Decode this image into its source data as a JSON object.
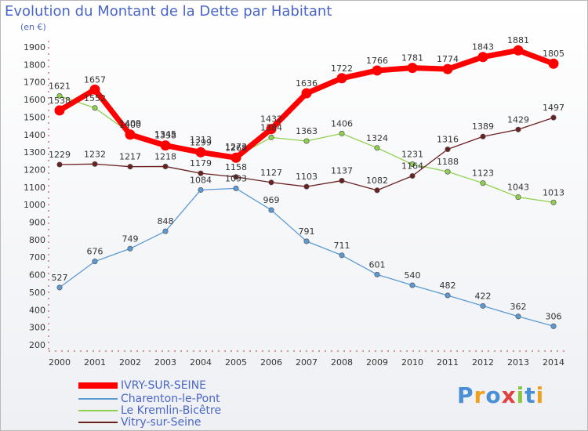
{
  "header": {
    "title": "Evolution du Montant de la Dette par Habitant",
    "subtitle": "(en €)"
  },
  "logo_text": "Proxiti",
  "chart_data": {
    "type": "line",
    "title": "Evolution du Montant de la Dette par Habitant",
    "ylabel": "(en €)",
    "xlabel": "",
    "x": [
      2000,
      2001,
      2002,
      2003,
      2004,
      2005,
      2006,
      2007,
      2008,
      2009,
      2010,
      2011,
      2012,
      2013,
      2014
    ],
    "ylim": [
      200,
      1900
    ],
    "yticks": [
      200,
      300,
      400,
      500,
      600,
      700,
      800,
      900,
      1000,
      1100,
      1200,
      1300,
      1400,
      1500,
      1600,
      1700,
      1800,
      1900
    ],
    "grid": false,
    "legend_position": "bottom-left",
    "series": [
      {
        "name": "IVRY-SUR-SEINE",
        "color": "#ff0000",
        "values": [
          1538,
          1657,
          1400,
          1338,
          1299,
          1268,
          1432,
          1636,
          1722,
          1766,
          1781,
          1774,
          1843,
          1881,
          1805
        ]
      },
      {
        "name": "Charenton-le-Pont",
        "color": "#5b9bd5",
        "values": [
          527,
          676,
          749,
          848,
          1084,
          1093,
          969,
          791,
          711,
          601,
          540,
          482,
          422,
          362,
          306
        ]
      },
      {
        "name": "Le Kremlin-Bicêtre",
        "color": "#8fd14f",
        "values": [
          1621,
          1552,
          1409,
          1345,
          1313,
          1273,
          1384,
          1363,
          1406,
          1324,
          1231,
          1188,
          1123,
          1043,
          1013
        ]
      },
      {
        "name": "Vitry-sur-Seine",
        "color": "#6b2020",
        "values": [
          1229,
          1232,
          1217,
          1218,
          1179,
          1158,
          1127,
          1103,
          1137,
          1082,
          1164,
          1316,
          1389,
          1429,
          1497
        ]
      }
    ]
  }
}
